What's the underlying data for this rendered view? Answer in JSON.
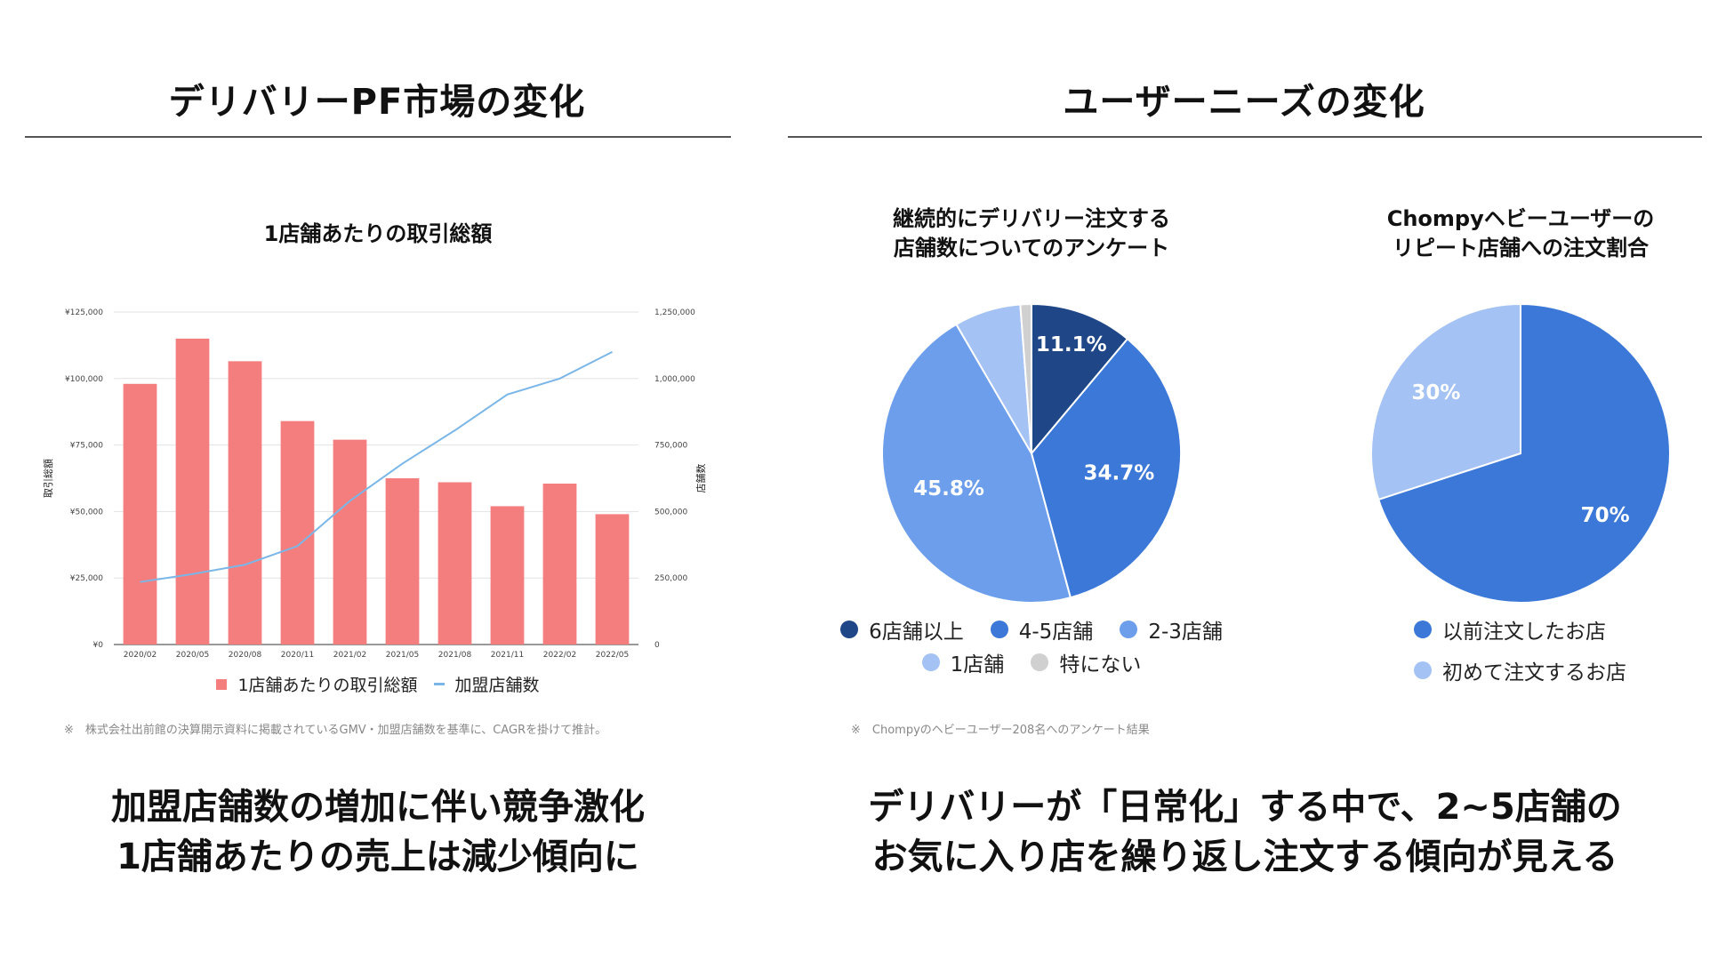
{
  "left": {
    "heading": "デリバリーPF市場の変化",
    "footnote": "※　株式会社出前館の決算開示資料に掲載されているGMV・加盟店舗数を基準に、CAGRを掛けて推計。",
    "conclusion_line1": "加盟店舗数の増加に伴い競争激化",
    "conclusion_line2": "1店舗あたりの売上は減少傾向に"
  },
  "right": {
    "heading": "ユーザーニーズの変化",
    "footnote": "※　Chompyのヘビーユーザー208名へのアンケート結果",
    "conclusion_line1": "デリバリーが「日常化」する中で、2~5店舗の",
    "conclusion_line2": "お気に入り店を繰り返し注文する傾向が見える"
  },
  "chart_data": [
    {
      "type": "bar+line",
      "title": "1店舗あたりの取引総額",
      "categories": [
        "2020/02",
        "2020/05",
        "2020/08",
        "2020/11",
        "2021/02",
        "2021/05",
        "2021/08",
        "2021/11",
        "2022/02",
        "2022/05"
      ],
      "series": [
        {
          "name": "1店舗あたりの取引総額",
          "type": "bar",
          "axis": "left",
          "color": "#f47e7e",
          "values": [
            98000,
            115000,
            106500,
            84000,
            77000,
            62500,
            61000,
            52000,
            60500,
            49000
          ]
        },
        {
          "name": "加盟店舗数",
          "type": "line",
          "axis": "right",
          "color": "#7ab6e8",
          "values": [
            235000,
            265000,
            300000,
            370000,
            540000,
            680000,
            805000,
            940000,
            1000000,
            1100000
          ]
        }
      ],
      "ylabel": "取引総額",
      "y2label": "店舗数",
      "ylim": [
        0,
        125000
      ],
      "y2lim": [
        0,
        1250000
      ],
      "yticks": [
        "¥0",
        "¥25,000",
        "¥50,000",
        "¥75,000",
        "¥100,000",
        "¥125,000"
      ],
      "y2ticks": [
        "0",
        "250,000",
        "500,000",
        "750,000",
        "1,000,000",
        "1,250,000"
      ],
      "legend": "bottom"
    },
    {
      "type": "pie",
      "title_line1": "継続的にデリバリー注文する",
      "title_line2": "店舗数についてのアンケート",
      "slices": [
        {
          "label": "6店舗以上",
          "value": 11.1,
          "color": "#1f4788",
          "text": "11.1%"
        },
        {
          "label": "4-5店舗",
          "value": 34.7,
          "color": "#3c78d8",
          "text": "34.7%"
        },
        {
          "label": "2-3店舗",
          "value": 45.8,
          "color": "#6d9eeb",
          "text": "45.8%"
        },
        {
          "label": "1店舗",
          "value": 7.2,
          "color": "#a4c2f4",
          "text": ""
        },
        {
          "label": "特にない",
          "value": 1.2,
          "color": "#d0d0d0",
          "text": ""
        }
      ],
      "legend": "bottom"
    },
    {
      "type": "pie",
      "title_line1": "Chompyヘビーユーザーの",
      "title_line2": "リピート店舗への注文割合",
      "slices": [
        {
          "label": "以前注文したお店",
          "value": 70,
          "color": "#3c78d8",
          "text": "70%"
        },
        {
          "label": "初めて注文するお店",
          "value": 30,
          "color": "#a4c2f4",
          "text": "30%"
        }
      ],
      "legend": "bottom"
    }
  ]
}
